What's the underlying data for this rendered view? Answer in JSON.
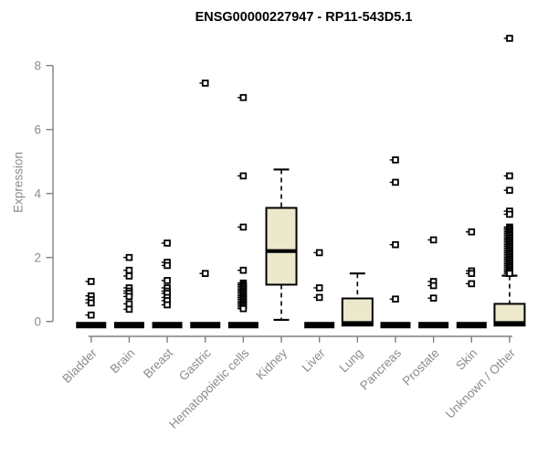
{
  "chart_data": {
    "type": "boxplot",
    "title": "ENSG00000227947 - RP11-543D5.1",
    "ylabel": "Expression",
    "xlabel": "",
    "yticks": [
      0,
      2,
      4,
      6,
      8
    ],
    "ylim": [
      0,
      8.9
    ],
    "grid": false,
    "legend": false,
    "categories": [
      "Bladder",
      "Brain",
      "Breast",
      "Gastric",
      "Hematopoietic cells",
      "Kidney",
      "Liver",
      "Lung",
      "Pancreas",
      "Prostate",
      "Skin",
      "Unknown / Other"
    ],
    "boxes": [
      {
        "category": "Bladder",
        "q1": 0,
        "median": 0,
        "q3": 0,
        "whisker_low": 0,
        "whisker_high": 0,
        "outliers": [
          1.25,
          0.8,
          0.68,
          0.58,
          0.2
        ]
      },
      {
        "category": "Brain",
        "q1": 0,
        "median": 0,
        "q3": 0,
        "whisker_low": 0,
        "whisker_high": 0,
        "outliers": [
          2.0,
          1.6,
          1.42,
          1.05,
          0.95,
          0.88,
          0.78,
          0.55,
          0.38
        ]
      },
      {
        "category": "Breast",
        "q1": 0,
        "median": 0,
        "q3": 0,
        "whisker_low": 0,
        "whisker_high": 0,
        "outliers": [
          2.45,
          1.85,
          1.75,
          1.28,
          1.05,
          0.95,
          0.88,
          0.75,
          0.65,
          0.52
        ]
      },
      {
        "category": "Gastric",
        "q1": 0,
        "median": 0,
        "q3": 0,
        "whisker_low": 0,
        "whisker_high": 0,
        "outliers": [
          7.45,
          1.5
        ]
      },
      {
        "category": "Hematopoietic cells",
        "q1": 0,
        "median": 0,
        "q3": 0,
        "whisker_low": 0,
        "whisker_high": 0,
        "outliers": [
          7.0,
          4.55,
          2.95,
          1.6,
          1.2,
          1.15,
          1.1,
          1.05,
          1.0,
          0.95,
          0.9,
          0.85,
          0.8,
          0.75,
          0.7,
          0.65,
          0.6,
          0.55,
          0.5,
          0.45,
          0.4
        ]
      },
      {
        "category": "Kidney",
        "q1": 1.15,
        "median": 2.2,
        "q3": 3.55,
        "whisker_low": 0.05,
        "whisker_high": 4.75,
        "outliers": []
      },
      {
        "category": "Liver",
        "q1": 0,
        "median": 0,
        "q3": 0,
        "whisker_low": 0,
        "whisker_high": 0,
        "outliers": [
          2.15,
          1.05,
          0.75
        ]
      },
      {
        "category": "Lung",
        "q1": 0,
        "median": 0.03,
        "q3": 0.72,
        "whisker_low": 0,
        "whisker_high": 1.5,
        "outliers": []
      },
      {
        "category": "Pancreas",
        "q1": 0,
        "median": 0,
        "q3": 0,
        "whisker_low": 0,
        "whisker_high": 0,
        "outliers": [
          5.05,
          4.35,
          2.4,
          0.7
        ]
      },
      {
        "category": "Prostate",
        "q1": 0,
        "median": 0,
        "q3": 0,
        "whisker_low": 0,
        "whisker_high": 0,
        "outliers": [
          2.55,
          1.25,
          1.12,
          0.73
        ]
      },
      {
        "category": "Skin",
        "q1": 0,
        "median": 0,
        "q3": 0,
        "whisker_low": 0,
        "whisker_high": 0,
        "outliers": [
          2.8,
          1.58,
          1.5,
          1.18
        ]
      },
      {
        "category": "Unknown / Other",
        "q1": 0,
        "median": 0.03,
        "q3": 0.55,
        "whisker_low": 0,
        "whisker_high": 1.43,
        "outliers": [
          8.85,
          4.55,
          4.1,
          3.45,
          3.35,
          2.95,
          2.9,
          2.85,
          2.8,
          2.75,
          2.7,
          2.65,
          2.6,
          2.55,
          2.5,
          2.45,
          2.4,
          2.35,
          2.3,
          2.25,
          2.2,
          2.15,
          2.1,
          2.05,
          2.0,
          1.95,
          1.9,
          1.85,
          1.8,
          1.75,
          1.7,
          1.65,
          1.6,
          1.55,
          1.5
        ]
      }
    ],
    "colors": {
      "box_fill": "#ECE8CC",
      "box_stroke": "#000000",
      "median": "#000000",
      "outlier": "#000000",
      "axis_line": "#808080",
      "axis_text": "#8c8c8c",
      "title_text": "#000000"
    }
  }
}
